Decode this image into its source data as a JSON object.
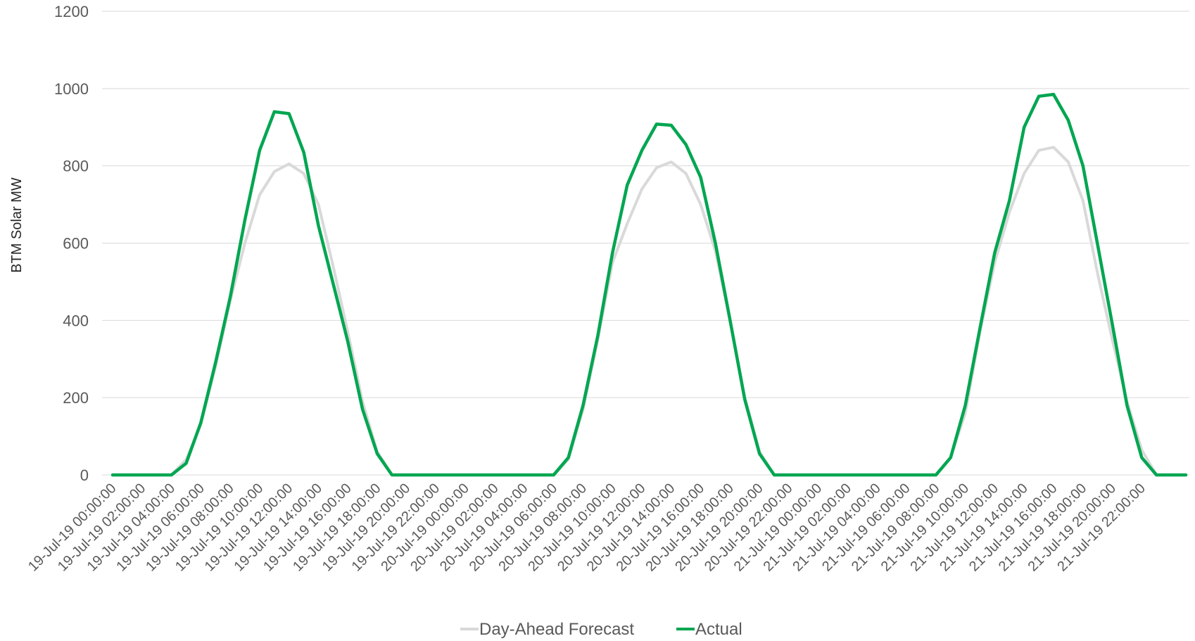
{
  "chart_data": {
    "type": "line",
    "title": "",
    "xlabel": "",
    "ylabel": "BTM Solar MW",
    "ylim": [
      0,
      1200
    ],
    "yticks": [
      0,
      200,
      400,
      600,
      800,
      1000,
      1200
    ],
    "grid": true,
    "legend_position": "bottom",
    "tick_labels": [
      "19-Jul-19 00:00:00",
      "19-Jul-19 02:00:00",
      "19-Jul-19 04:00:00",
      "19-Jul-19 06:00:00",
      "19-Jul-19 08:00:00",
      "19-Jul-19 10:00:00",
      "19-Jul-19 12:00:00",
      "19-Jul-19 14:00:00",
      "19-Jul-19 16:00:00",
      "19-Jul-19 18:00:00",
      "19-Jul-19 20:00:00",
      "19-Jul-19 22:00:00",
      "20-Jul-19 00:00:00",
      "20-Jul-19 02:00:00",
      "20-Jul-19 04:00:00",
      "20-Jul-19 06:00:00",
      "20-Jul-19 08:00:00",
      "20-Jul-19 10:00:00",
      "20-Jul-19 12:00:00",
      "20-Jul-19 14:00:00",
      "20-Jul-19 16:00:00",
      "20-Jul-19 18:00:00",
      "20-Jul-19 20:00:00",
      "20-Jul-19 22:00:00",
      "21-Jul-19 00:00:00",
      "21-Jul-19 02:00:00",
      "21-Jul-19 04:00:00",
      "21-Jul-19 06:00:00",
      "21-Jul-19 08:00:00",
      "21-Jul-19 10:00:00",
      "21-Jul-19 12:00:00",
      "21-Jul-19 14:00:00",
      "21-Jul-19 16:00:00",
      "21-Jul-19 18:00:00",
      "21-Jul-19 20:00:00",
      "21-Jul-19 22:00:00"
    ],
    "series": [
      {
        "name": "Day-Ahead Forecast",
        "color": "#d9d9d9",
        "values": [
          0,
          0,
          0,
          0,
          0,
          40,
          130,
          280,
          450,
          600,
          725,
          785,
          805,
          780,
          700,
          540,
          370,
          190,
          60,
          0,
          0,
          0,
          0,
          0,
          0,
          0,
          0,
          0,
          0,
          0,
          0,
          40,
          170,
          350,
          550,
          650,
          740,
          795,
          810,
          780,
          700,
          580,
          400,
          200,
          60,
          0,
          0,
          0,
          0,
          0,
          0,
          0,
          0,
          0,
          0,
          0,
          0,
          45,
          160,
          370,
          550,
          680,
          780,
          840,
          848,
          810,
          710,
          520,
          350,
          190,
          65,
          0,
          0,
          0
        ]
      },
      {
        "name": "Actual",
        "color": "#00a651",
        "values": [
          0,
          0,
          0,
          0,
          0,
          30,
          135,
          290,
          460,
          660,
          840,
          940,
          935,
          835,
          645,
          495,
          345,
          170,
          55,
          0,
          0,
          0,
          0,
          0,
          0,
          0,
          0,
          0,
          0,
          0,
          0,
          45,
          180,
          360,
          575,
          750,
          840,
          908,
          905,
          855,
          770,
          600,
          400,
          195,
          55,
          0,
          0,
          0,
          0,
          0,
          0,
          0,
          0,
          0,
          0,
          0,
          0,
          45,
          180,
          380,
          575,
          710,
          900,
          980,
          985,
          918,
          800,
          595,
          390,
          180,
          45,
          0,
          0,
          0
        ]
      }
    ]
  }
}
